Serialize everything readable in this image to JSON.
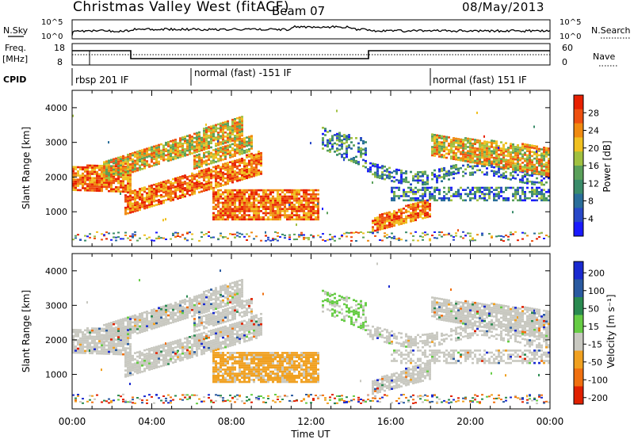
{
  "header": {
    "title": "Christmas Valley West (fitACF)",
    "beam": "Beam 07",
    "date": "08/May/2013"
  },
  "top_panels": {
    "nsky_label": "N.Sky",
    "nsky_ticks": [
      "10^5",
      "10^0"
    ],
    "nsearch_label": "N.Search",
    "nsearch_ticks": [
      "10^5",
      "10^0"
    ],
    "freq_label": "Freq.",
    "freq_unit": "[MHz]",
    "freq_ticks": [
      "18",
      "8"
    ],
    "nave_label": "Nave",
    "nave_ticks": [
      "60",
      "0"
    ],
    "cpid_label": "CPID",
    "cpid_segments": [
      {
        "start_h": 0,
        "label": "rbsp 201 IF"
      },
      {
        "start_h": 6,
        "label": "normal (fast) -151 IF"
      },
      {
        "start_h": 18,
        "label": "normal (fast) 151 IF"
      }
    ]
  },
  "chart_data": [
    {
      "type": "heatmap",
      "name": "power",
      "ylabel": "Slant Range [km]",
      "xlabel": "Time UT",
      "xlim": [
        0,
        24
      ],
      "ylim": [
        0,
        4500
      ],
      "yticks": [
        "1000",
        "2000",
        "3000",
        "4000"
      ],
      "xticks": [
        "00:00",
        "04:00",
        "08:00",
        "12:00",
        "16:00",
        "20:00",
        "00:00"
      ],
      "colorbar": {
        "label": "Power [dB]",
        "ticks": [
          "4",
          "8",
          "12",
          "16",
          "20",
          "24",
          "28"
        ],
        "colors": [
          "#1a1aff",
          "#2848c8",
          "#2a6e9a",
          "#3a8c6a",
          "#5aa05a",
          "#a0c040",
          "#f0c020",
          "#f08a10",
          "#ee5010",
          "#e82000"
        ]
      }
    },
    {
      "type": "heatmap",
      "name": "velocity",
      "ylabel": "Slant Range [km]",
      "xlabel": "Time UT",
      "xlim": [
        0,
        24
      ],
      "ylim": [
        0,
        4500
      ],
      "yticks": [
        "1000",
        "2000",
        "3000",
        "4000"
      ],
      "xticks": [
        "00:00",
        "04:00",
        "08:00",
        "12:00",
        "16:00",
        "20:00",
        "00:00"
      ],
      "colorbar": {
        "label": "Velocity [m s⁻¹]",
        "ticks": [
          "200",
          "100",
          "50",
          "15",
          "-15",
          "-50",
          "-100",
          "-200"
        ],
        "colors": [
          "#1a2ad0",
          "#2a5aa0",
          "#2a8a50",
          "#66cc44",
          "#c8c8c0",
          "#f0a020",
          "#f07010",
          "#e02000"
        ]
      }
    }
  ]
}
